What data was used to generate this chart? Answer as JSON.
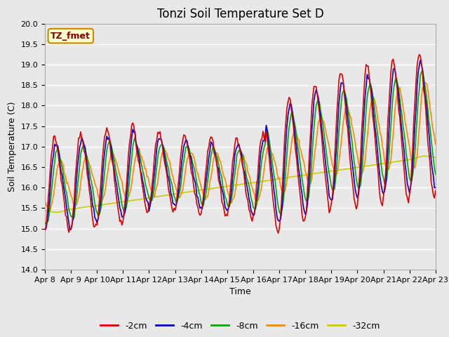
{
  "title": "Tonzi Soil Temperature Set D",
  "xlabel": "Time",
  "ylabel": "Soil Temperature (C)",
  "ylim": [
    14.0,
    20.0
  ],
  "yticks": [
    14.0,
    14.5,
    15.0,
    15.5,
    16.0,
    16.5,
    17.0,
    17.5,
    18.0,
    18.5,
    19.0,
    19.5,
    20.0
  ],
  "xtick_labels": [
    "Apr 8",
    "Apr 9",
    "Apr 10",
    "Apr 11",
    "Apr 12",
    "Apr 13",
    "Apr 14",
    "Apr 15",
    "Apr 16",
    "Apr 17",
    "Apr 18",
    "Apr 19",
    "Apr 20",
    "Apr 21",
    "Apr 22",
    "Apr 23"
  ],
  "series_colors": [
    "#dd0000",
    "#0000cc",
    "#00aa00",
    "#ff8800",
    "#cccc00"
  ],
  "series_labels": [
    "-2cm",
    "-4cm",
    "-8cm",
    "-16cm",
    "-32cm"
  ],
  "annotation_text": "TZ_fmet",
  "annotation_color": "#880000",
  "annotation_bg": "#ffffcc",
  "annotation_edge": "#cc8800",
  "background_color": "#e8e8e8",
  "plot_bg_color": "#e8e8e8",
  "grid_color": "#ffffff",
  "title_fontsize": 12,
  "axis_fontsize": 9,
  "tick_fontsize": 8,
  "legend_fontsize": 9,
  "line_width": 1.2
}
